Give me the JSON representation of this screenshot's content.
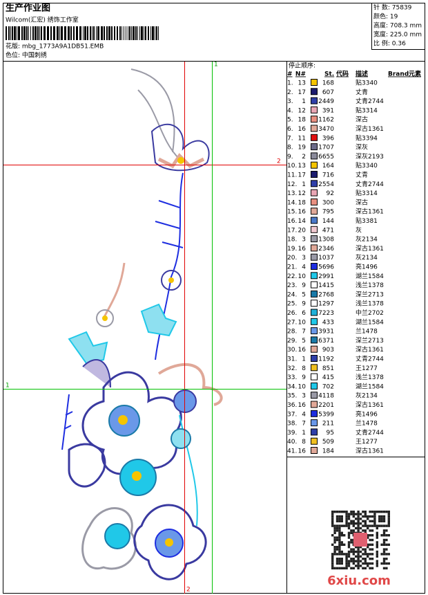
{
  "header": {
    "title": "生产作业图",
    "studio": "Wilcom(汇宏) 绣饰工作室",
    "file": "花版: mbg_1773A9A1DB51.EMB",
    "colorway": "色位: 中国刺绣"
  },
  "info": [
    "针 数: 75839",
    "颜色: 19",
    "高度: 708.3 mm",
    "宽度: 225.0 mm",
    "比 例: 0.36"
  ],
  "guides": {
    "red_h": "2",
    "red_v": "2",
    "green_v": "1",
    "green_h": "1"
  },
  "table": {
    "caption": "停止顺序:",
    "columns": [
      "#",
      "N#",
      "St.",
      "代码",
      "描述",
      "Brand",
      "元素"
    ],
    "rows": [
      {
        "idx": "1.",
        "n": 13,
        "color": "#f5c400",
        "st": 168,
        "desc": "贴3340"
      },
      {
        "idx": "2.",
        "n": 17,
        "color": "#1c1c6e",
        "st": 607,
        "desc": "丈青"
      },
      {
        "idx": "3.",
        "n": 1,
        "color": "#2f3fa8",
        "st": 2449,
        "desc": "丈青2744"
      },
      {
        "idx": "4.",
        "n": 12,
        "color": "#e8a6b4",
        "st": 391,
        "desc": "贴3314"
      },
      {
        "idx": "5.",
        "n": 18,
        "color": "#e88f80",
        "st": 1162,
        "desc": "深古"
      },
      {
        "idx": "6.",
        "n": 16,
        "color": "#e0a898",
        "st": 3470,
        "desc": "深古1361"
      },
      {
        "idx": "7.",
        "n": 11,
        "color": "#e01010",
        "st": 396,
        "desc": "贴3394"
      },
      {
        "idx": "8.",
        "n": 19,
        "color": "#6a6a88",
        "st": 1707,
        "desc": "深灰"
      },
      {
        "idx": "9.",
        "n": 2,
        "color": "#8a8a9a",
        "st": 6655,
        "desc": "深灰2193"
      },
      {
        "idx": "10.",
        "n": 13,
        "color": "#f5c400",
        "st": 164,
        "desc": "贴3340"
      },
      {
        "idx": "11.",
        "n": 17,
        "color": "#1c1c6e",
        "st": 716,
        "desc": "丈青"
      },
      {
        "idx": "12.",
        "n": 1,
        "color": "#2f3fa8",
        "st": 2554,
        "desc": "丈青2744"
      },
      {
        "idx": "13.",
        "n": 12,
        "color": "#e8a6b4",
        "st": 92,
        "desc": "贴3314"
      },
      {
        "idx": "14.",
        "n": 18,
        "color": "#e88f80",
        "st": 300,
        "desc": "深古"
      },
      {
        "idx": "15.",
        "n": 16,
        "color": "#e0a898",
        "st": 795,
        "desc": "深古1361"
      },
      {
        "idx": "16.",
        "n": 14,
        "color": "#4a78c8",
        "st": 144,
        "desc": "贴3381"
      },
      {
        "idx": "17.",
        "n": 20,
        "color": "#f0c8d0",
        "st": 471,
        "desc": "灰"
      },
      {
        "idx": "18.",
        "n": 3,
        "color": "#9a9aa6",
        "st": 1308,
        "desc": "灰2134"
      },
      {
        "idx": "19.",
        "n": 16,
        "color": "#e0a898",
        "st": 2346,
        "desc": "深古1361"
      },
      {
        "idx": "20.",
        "n": 3,
        "color": "#9a9aa6",
        "st": 1037,
        "desc": "灰2134"
      },
      {
        "idx": "21.",
        "n": 4,
        "color": "#1e2ee0",
        "st": 5696,
        "desc": "亮1496"
      },
      {
        "idx": "22.",
        "n": 10,
        "color": "#20c8e8",
        "st": 2991,
        "desc": "湖兰1584"
      },
      {
        "idx": "23.",
        "n": 9,
        "color": "#ffffff",
        "st": 1415,
        "desc": "浅兰1378"
      },
      {
        "idx": "24.",
        "n": 5,
        "color": "#1a7aa8",
        "st": 2768,
        "desc": "深兰2713"
      },
      {
        "idx": "25.",
        "n": 9,
        "color": "#ffffff",
        "st": 1297,
        "desc": "浅兰1378"
      },
      {
        "idx": "26.",
        "n": 6,
        "color": "#20b0d8",
        "st": 7223,
        "desc": "中兰2702"
      },
      {
        "idx": "27.",
        "n": 10,
        "color": "#20c8e8",
        "st": 433,
        "desc": "湖兰1584"
      },
      {
        "idx": "28.",
        "n": 7,
        "color": "#6a98e8",
        "st": 3931,
        "desc": "兰1478"
      },
      {
        "idx": "29.",
        "n": 5,
        "color": "#1a7aa8",
        "st": 6371,
        "desc": "深兰2713"
      },
      {
        "idx": "30.",
        "n": 16,
        "color": "#e0a898",
        "st": 903,
        "desc": "深古1361"
      },
      {
        "idx": "31.",
        "n": 1,
        "color": "#2f3fa8",
        "st": 1192,
        "desc": "丈青2744"
      },
      {
        "idx": "32.",
        "n": 8,
        "color": "#f0c020",
        "st": 851,
        "desc": "王1277"
      },
      {
        "idx": "33.",
        "n": 9,
        "color": "#ffffff",
        "st": 415,
        "desc": "浅兰1378"
      },
      {
        "idx": "34.",
        "n": 10,
        "color": "#20c8e8",
        "st": 702,
        "desc": "湖兰1584"
      },
      {
        "idx": "35.",
        "n": 3,
        "color": "#9a9aa6",
        "st": 4118,
        "desc": "灰2134"
      },
      {
        "idx": "36.",
        "n": 16,
        "color": "#e0a898",
        "st": 2201,
        "desc": "深古1361"
      },
      {
        "idx": "37.",
        "n": 4,
        "color": "#1e2ee0",
        "st": 5399,
        "desc": "亮1496"
      },
      {
        "idx": "38.",
        "n": 7,
        "color": "#6a98e8",
        "st": 211,
        "desc": "兰1478"
      },
      {
        "idx": "39.",
        "n": 1,
        "color": "#2f3fa8",
        "st": 95,
        "desc": "丈青2744"
      },
      {
        "idx": "40.",
        "n": 8,
        "color": "#f0c020",
        "st": 509,
        "desc": "王1277"
      },
      {
        "idx": "41.",
        "n": 16,
        "color": "#e0a898",
        "st": 184,
        "desc": "深古1361"
      }
    ]
  },
  "watermark": "6xiu.com"
}
